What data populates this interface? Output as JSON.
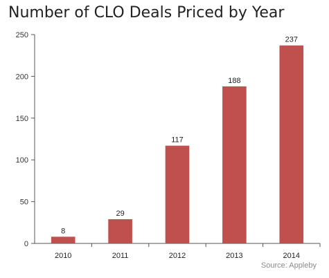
{
  "chart_data": {
    "type": "bar",
    "title": "Number of CLO Deals Priced by Year",
    "xlabel": "",
    "ylabel": "",
    "categories": [
      "2010",
      "2011",
      "2012",
      "2013",
      "2014"
    ],
    "values": [
      8,
      29,
      117,
      188,
      237
    ],
    "ylim": [
      0,
      250
    ],
    "yticks": [
      0,
      50,
      100,
      150,
      200,
      250
    ],
    "bar_color": "#c0504d",
    "grid": false,
    "legend": "none",
    "data_labels": true,
    "source": "Source: Appleby"
  }
}
